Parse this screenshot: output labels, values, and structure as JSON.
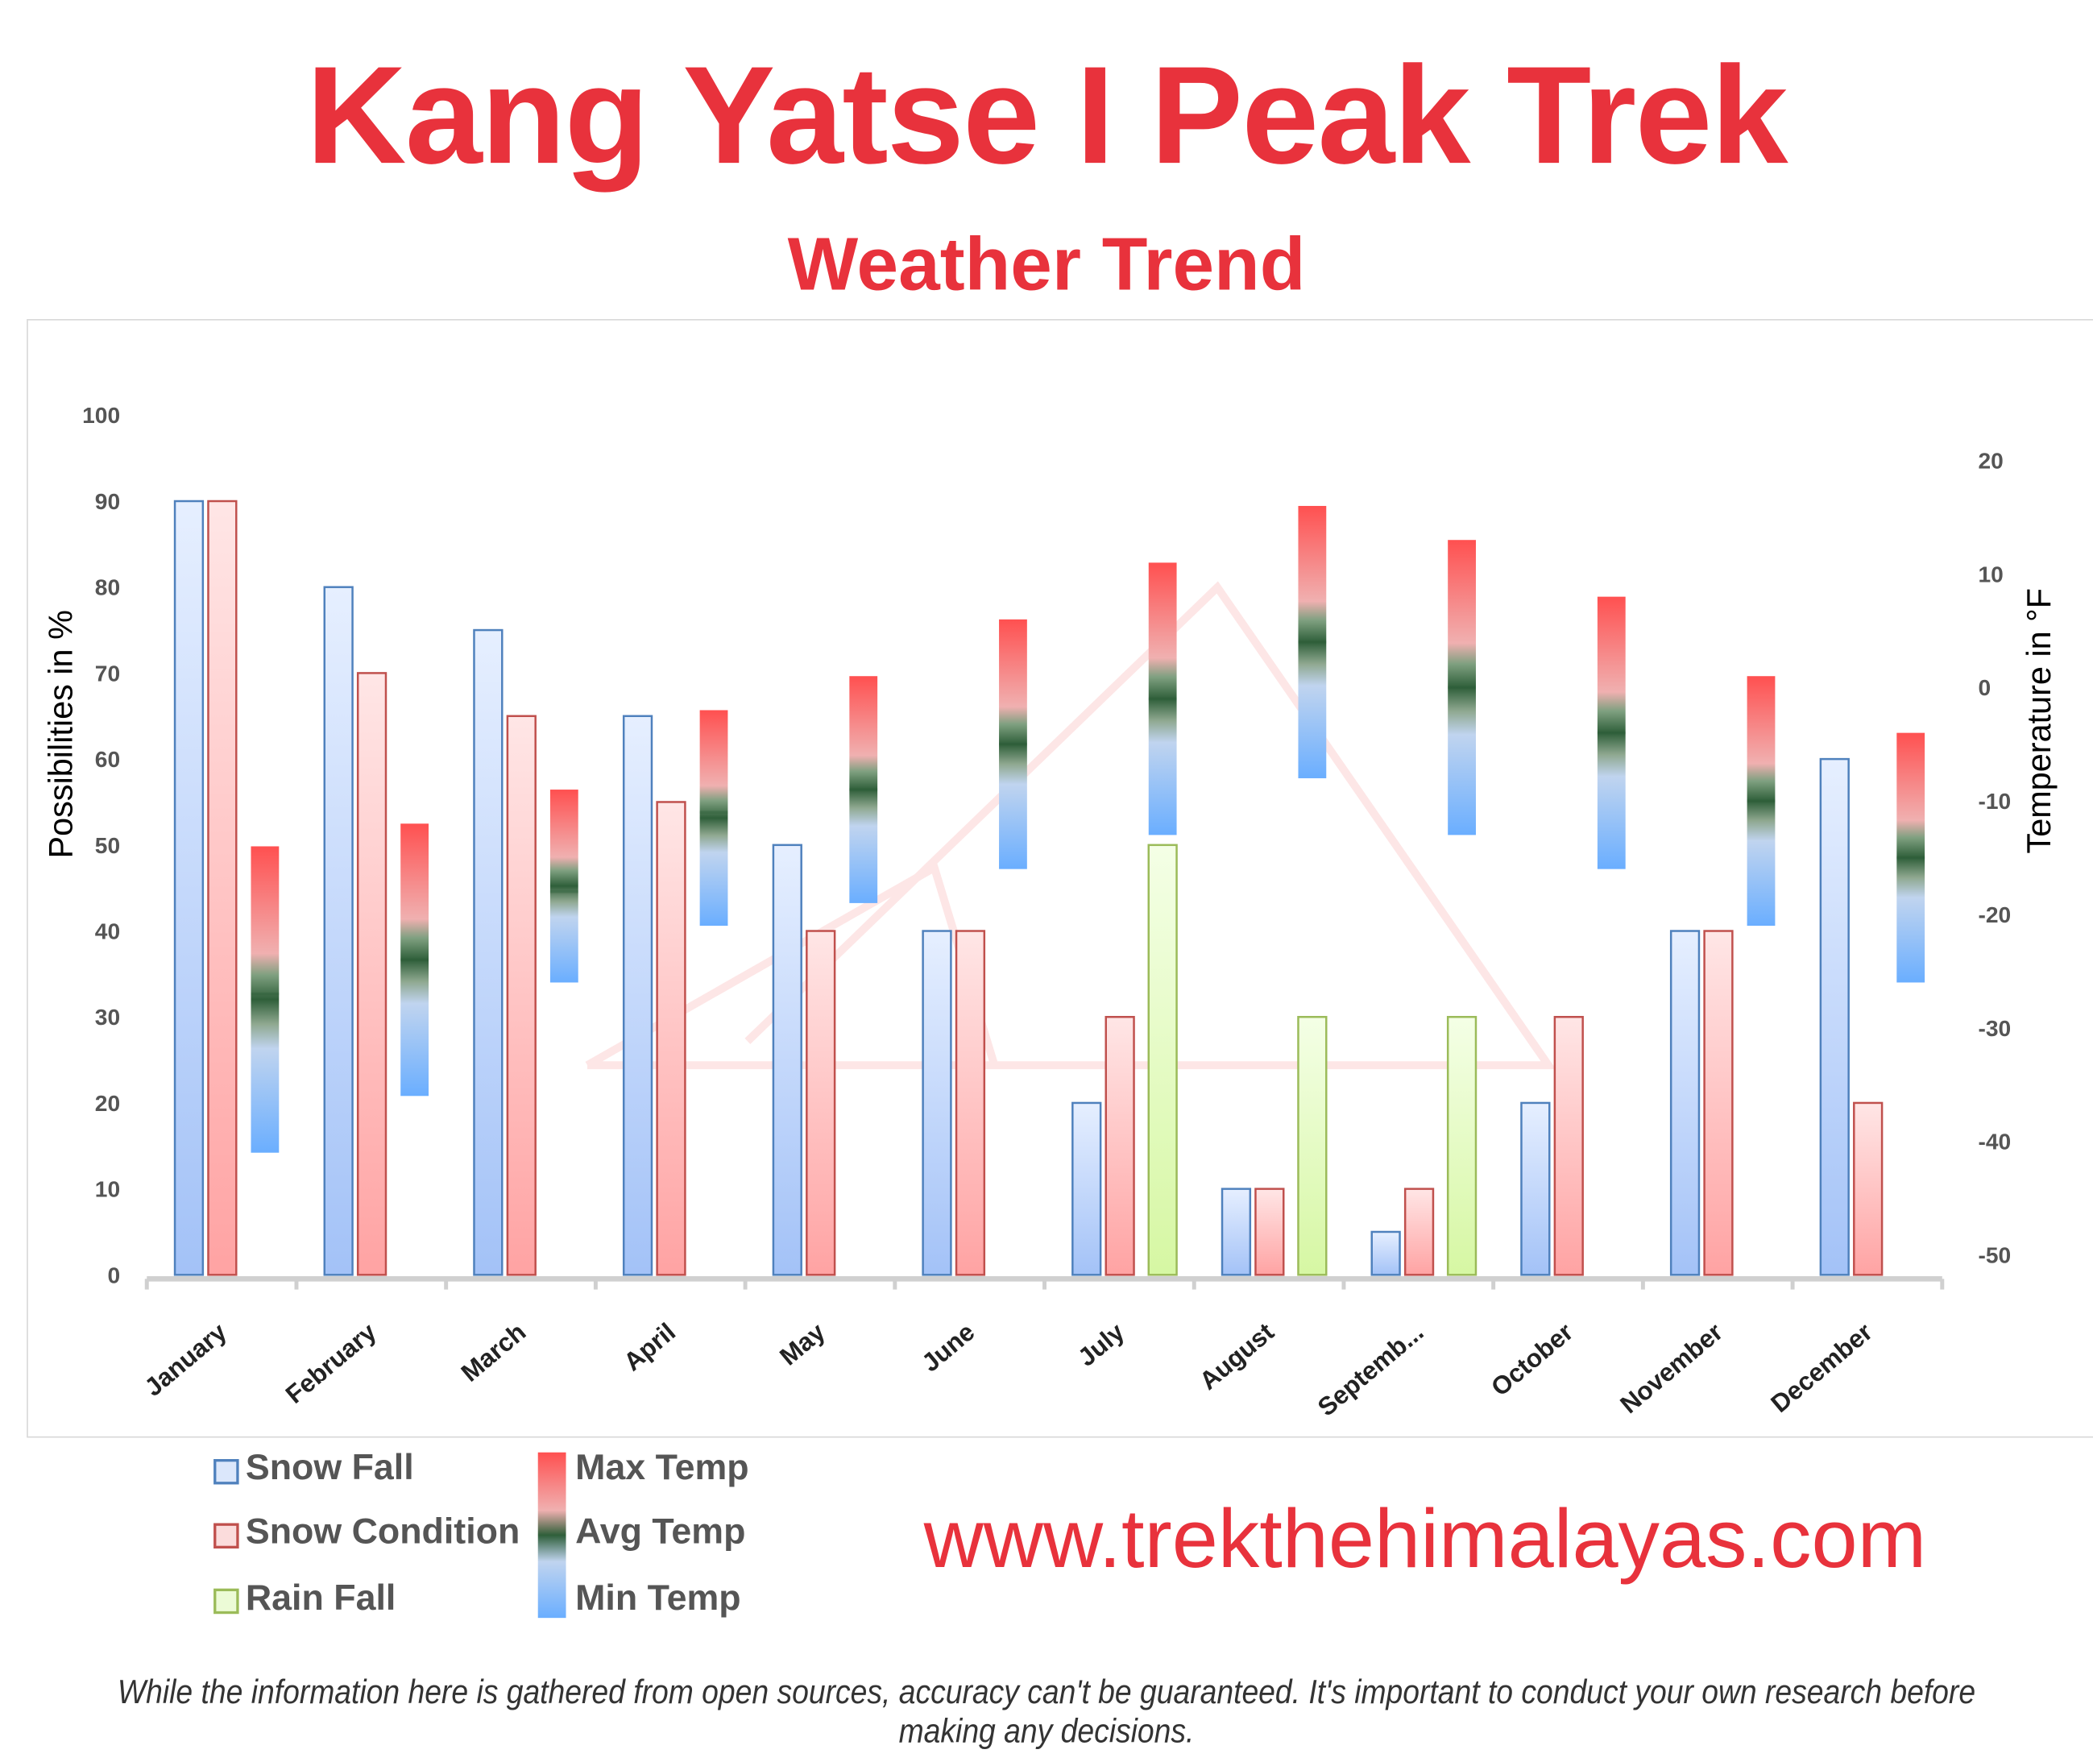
{
  "header": {
    "title": "Kang Yatse I Peak Trek",
    "subtitle": "Weather Trend"
  },
  "chart_data": {
    "type": "bar",
    "categories": [
      "January",
      "February",
      "March",
      "April",
      "May",
      "June",
      "July",
      "August",
      "Septemb...",
      "October",
      "November",
      "December"
    ],
    "ylabel": "Possibilities in %",
    "ylabel_right": "Temperature in °F",
    "ylim": [
      0,
      100
    ],
    "ylim_right": [
      -50,
      20
    ],
    "yticks": [
      "0",
      "10",
      "20",
      "30",
      "40",
      "50",
      "60",
      "70",
      "80",
      "90",
      "100"
    ],
    "yticks_right": [
      "-50",
      "-40",
      "-30",
      "-20",
      "-10",
      "0",
      "10",
      "20"
    ],
    "grid": false,
    "legend_placement": "bottom-left",
    "series": [
      {
        "name": "Snow Fall",
        "axis": "left",
        "color": "#4f81bd",
        "values": [
          90,
          80,
          75,
          65,
          50,
          40,
          20,
          10,
          5,
          20,
          40,
          60
        ]
      },
      {
        "name": "Snow Condition",
        "axis": "left",
        "color": "#c0504d",
        "values": [
          90,
          70,
          65,
          55,
          40,
          40,
          30,
          10,
          10,
          30,
          40,
          20
        ]
      },
      {
        "name": "Rain Fall",
        "axis": "left",
        "color": "#9bbb59",
        "values": [
          null,
          null,
          null,
          null,
          null,
          null,
          50,
          30,
          30,
          null,
          null,
          null
        ]
      },
      {
        "name": "Max Temp",
        "axis": "right",
        "color": "#ff5050",
        "values": [
          -14,
          -12,
          -9,
          -2,
          1,
          6,
          11,
          16,
          13,
          8,
          1,
          -4
        ]
      },
      {
        "name": "Avg Temp",
        "axis": "right",
        "color": "#2f5f3a",
        "values": [
          -27,
          -24,
          -18,
          -11,
          -9,
          -5,
          -1,
          4,
          0,
          -4,
          -10,
          -15
        ]
      },
      {
        "name": "Min Temp",
        "axis": "right",
        "color": "#6aaeff",
        "values": [
          -41,
          -36,
          -26,
          -21,
          -19,
          -16,
          -13,
          -8,
          -13,
          -16,
          -21,
          -26
        ]
      }
    ]
  },
  "legend": {
    "snow_fall": "Snow Fall",
    "snow_condition": "Snow Condition",
    "rain_fall": "Rain Fall",
    "max_temp": "Max Temp",
    "avg_temp": "Avg Temp",
    "min_temp": "Min Temp"
  },
  "footer": {
    "website": "www.trekthehimalayas.com",
    "disclaimer": "While the information here is gathered from open sources, accuracy can't be guaranteed. It's important to conduct your own research before making any decisions."
  }
}
